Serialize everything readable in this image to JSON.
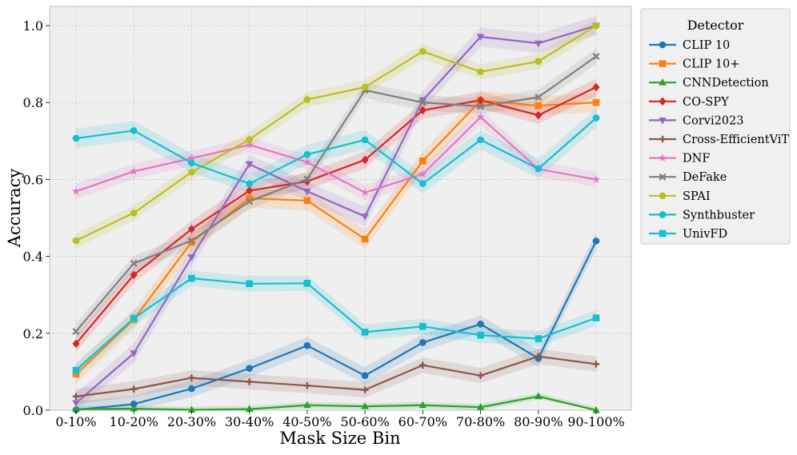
{
  "chart_data": {
    "type": "line",
    "title": "",
    "xlabel": "Mask Size Bin",
    "ylabel": "Accuracy",
    "ylim": [
      0.0,
      1.05
    ],
    "yticks": [
      "0.0",
      "0.2",
      "0.4",
      "0.6",
      "0.8",
      "1.0"
    ],
    "grid": true,
    "legend_title": "Detector",
    "legend_position": "right-outside",
    "categories": [
      "0-10%",
      "10-20%",
      "20-30%",
      "30-40%",
      "40-50%",
      "50-60%",
      "60-70%",
      "70-80%",
      "80-90%",
      "90-100%"
    ],
    "series": [
      {
        "name": "CLIP 10",
        "color": "#1f77b4",
        "marker": "circle",
        "band": 0.022,
        "values": [
          0.001,
          0.016,
          0.056,
          0.109,
          0.168,
          0.09,
          0.176,
          0.224,
          0.135,
          0.44
        ]
      },
      {
        "name": "CLIP 10+",
        "color": "#ff7f0e",
        "marker": "square",
        "band": 0.025,
        "values": [
          0.094,
          0.236,
          0.437,
          0.551,
          0.545,
          0.445,
          0.648,
          0.805,
          0.792,
          0.8
        ]
      },
      {
        "name": "CNNDetection",
        "color": "#2ca02c",
        "marker": "triangle-up",
        "band": 0.008,
        "values": [
          0.003,
          0.004,
          0.001,
          0.003,
          0.013,
          0.01,
          0.013,
          0.008,
          0.036,
          0.0
        ]
      },
      {
        "name": "CO-SPY",
        "color": "#d62728",
        "marker": "diamond",
        "band": 0.022,
        "values": [
          0.173,
          0.352,
          0.471,
          0.571,
          0.595,
          0.651,
          0.78,
          0.806,
          0.767,
          0.84
        ]
      },
      {
        "name": "Corvi2023",
        "color": "#9467bd",
        "marker": "triangle-down",
        "band": 0.025,
        "values": [
          0.019,
          0.148,
          0.398,
          0.64,
          0.569,
          0.504,
          0.806,
          0.971,
          0.954,
          1.0
        ]
      },
      {
        "name": "Cross-EfficientViT",
        "color": "#8c564b",
        "marker": "plus",
        "band": 0.02,
        "values": [
          0.036,
          0.055,
          0.084,
          0.074,
          0.064,
          0.053,
          0.117,
          0.09,
          0.14,
          0.12
        ]
      },
      {
        "name": "DNF",
        "color": "#e377c2",
        "marker": "star",
        "band": 0.02,
        "values": [
          0.569,
          0.621,
          0.655,
          0.69,
          0.645,
          0.566,
          0.614,
          0.762,
          0.627,
          0.6
        ]
      },
      {
        "name": "DeFake",
        "color": "#7f7f7f",
        "marker": "x",
        "band": 0.02,
        "values": [
          0.205,
          0.382,
          0.441,
          0.543,
          0.601,
          0.832,
          0.8,
          0.79,
          0.814,
          0.92
        ]
      },
      {
        "name": "SPAI",
        "color": "#bcbd22",
        "marker": "circle",
        "band": 0.02,
        "values": [
          0.441,
          0.513,
          0.619,
          0.704,
          0.808,
          0.84,
          0.933,
          0.88,
          0.907,
          1.0
        ]
      },
      {
        "name": "Synthbuster",
        "color": "#17becf",
        "marker": "circle",
        "band": 0.025,
        "values": [
          0.707,
          0.727,
          0.643,
          0.589,
          0.665,
          0.703,
          0.589,
          0.703,
          0.628,
          0.76
        ]
      },
      {
        "name": "UnivFD",
        "color": "#17becf",
        "marker": "square",
        "band": 0.02,
        "values": [
          0.104,
          0.239,
          0.343,
          0.329,
          0.33,
          0.203,
          0.218,
          0.195,
          0.186,
          0.24
        ]
      }
    ]
  }
}
